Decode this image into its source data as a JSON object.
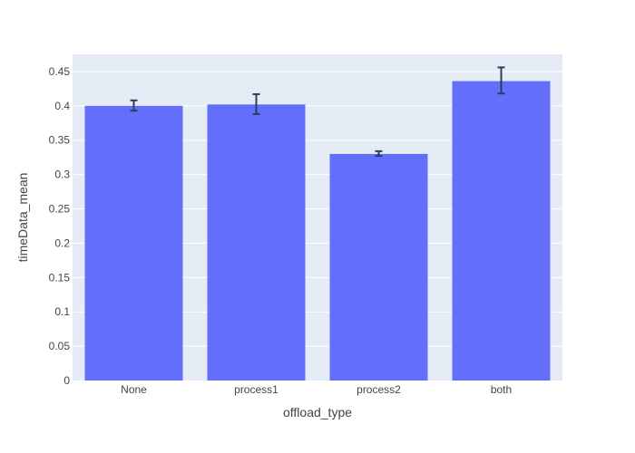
{
  "chart_data": {
    "type": "bar",
    "title": "",
    "xlabel": "offload_type",
    "ylabel": "timeData_mean",
    "categories": [
      "None",
      "process1",
      "process2",
      "both"
    ],
    "values": [
      0.4,
      0.402,
      0.33,
      0.436
    ],
    "error_low": [
      0.007,
      0.014,
      0.003,
      0.018
    ],
    "error_high": [
      0.008,
      0.015,
      0.004,
      0.02
    ],
    "ylim": [
      0,
      0.475
    ],
    "yticks": [
      0,
      0.05,
      0.1,
      0.15,
      0.2,
      0.25,
      0.3,
      0.35,
      0.4,
      0.45
    ],
    "ytick_labels": [
      "0",
      "0.05",
      "0.1",
      "0.15",
      "0.2",
      "0.25",
      "0.3",
      "0.35",
      "0.4",
      "0.45"
    ],
    "grid": true,
    "colors": {
      "bar": "#636efa",
      "plot_background": "#e5ecf6",
      "grid": "#ffffff",
      "error_bar": "#2a3f5f",
      "text": "#444444"
    }
  }
}
